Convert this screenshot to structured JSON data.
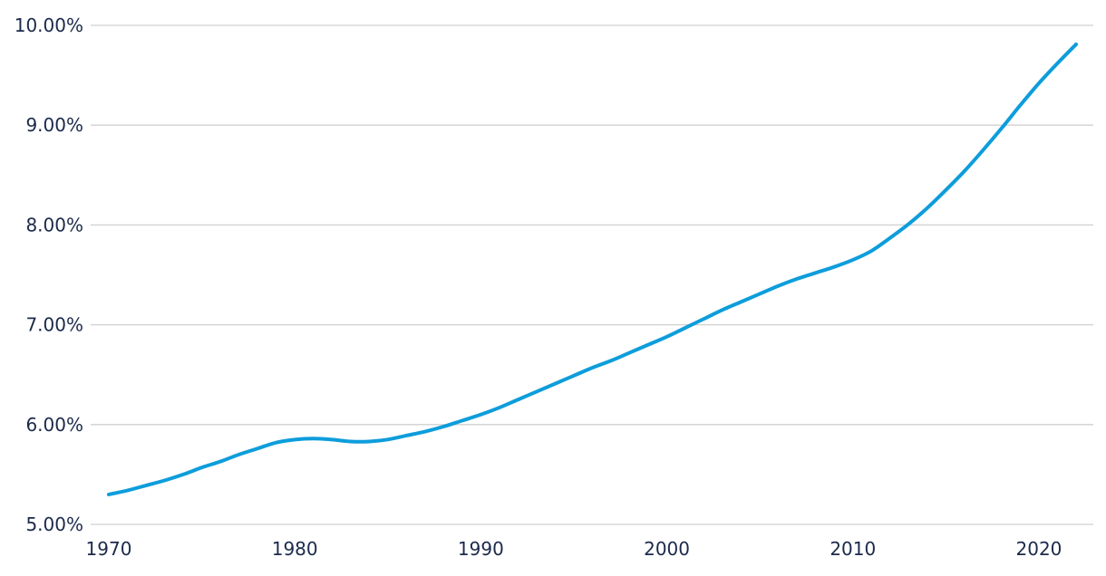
{
  "chart_data": {
    "type": "line",
    "title": "",
    "xlabel": "",
    "ylabel": "",
    "xlim": [
      1970,
      2022
    ],
    "ylim": [
      5.0,
      10.0
    ],
    "grid": true,
    "line_color": "#0d9ddb",
    "grid_color": "#d0d0d0",
    "text_color": "#1b2a4a",
    "x_ticks": [
      1970,
      1980,
      1990,
      2000,
      2010,
      2020
    ],
    "y_ticks": [
      5,
      6,
      7,
      8,
      9,
      10
    ],
    "y_tick_labels": [
      "5.00%",
      "6.00%",
      "7.00%",
      "8.00%",
      "9.00%",
      "10.00%"
    ],
    "series": [
      {
        "x": [
          1970,
          1971,
          1972,
          1973,
          1974,
          1975,
          1976,
          1977,
          1978,
          1979,
          1980,
          1981,
          1982,
          1983,
          1984,
          1985,
          1986,
          1987,
          1988,
          1989,
          1990,
          1991,
          1992,
          1993,
          1994,
          1995,
          1996,
          1997,
          1998,
          1999,
          2000,
          2001,
          2002,
          2003,
          2004,
          2005,
          2006,
          2007,
          2008,
          2009,
          2010,
          2011,
          2012,
          2013,
          2014,
          2015,
          2016,
          2017,
          2018,
          2019,
          2020,
          2021,
          2022
        ],
        "values": [
          5.3,
          5.34,
          5.39,
          5.44,
          5.5,
          5.57,
          5.63,
          5.7,
          5.76,
          5.82,
          5.85,
          5.86,
          5.85,
          5.83,
          5.83,
          5.85,
          5.89,
          5.93,
          5.98,
          6.04,
          6.1,
          6.17,
          6.25,
          6.33,
          6.41,
          6.49,
          6.57,
          6.64,
          6.72,
          6.8,
          6.88,
          6.97,
          7.06,
          7.15,
          7.23,
          7.31,
          7.39,
          7.46,
          7.52,
          7.58,
          7.65,
          7.74,
          7.87,
          8.01,
          8.17,
          8.35,
          8.54,
          8.75,
          8.97,
          9.2,
          9.42,
          9.62,
          9.81
        ]
      }
    ]
  }
}
